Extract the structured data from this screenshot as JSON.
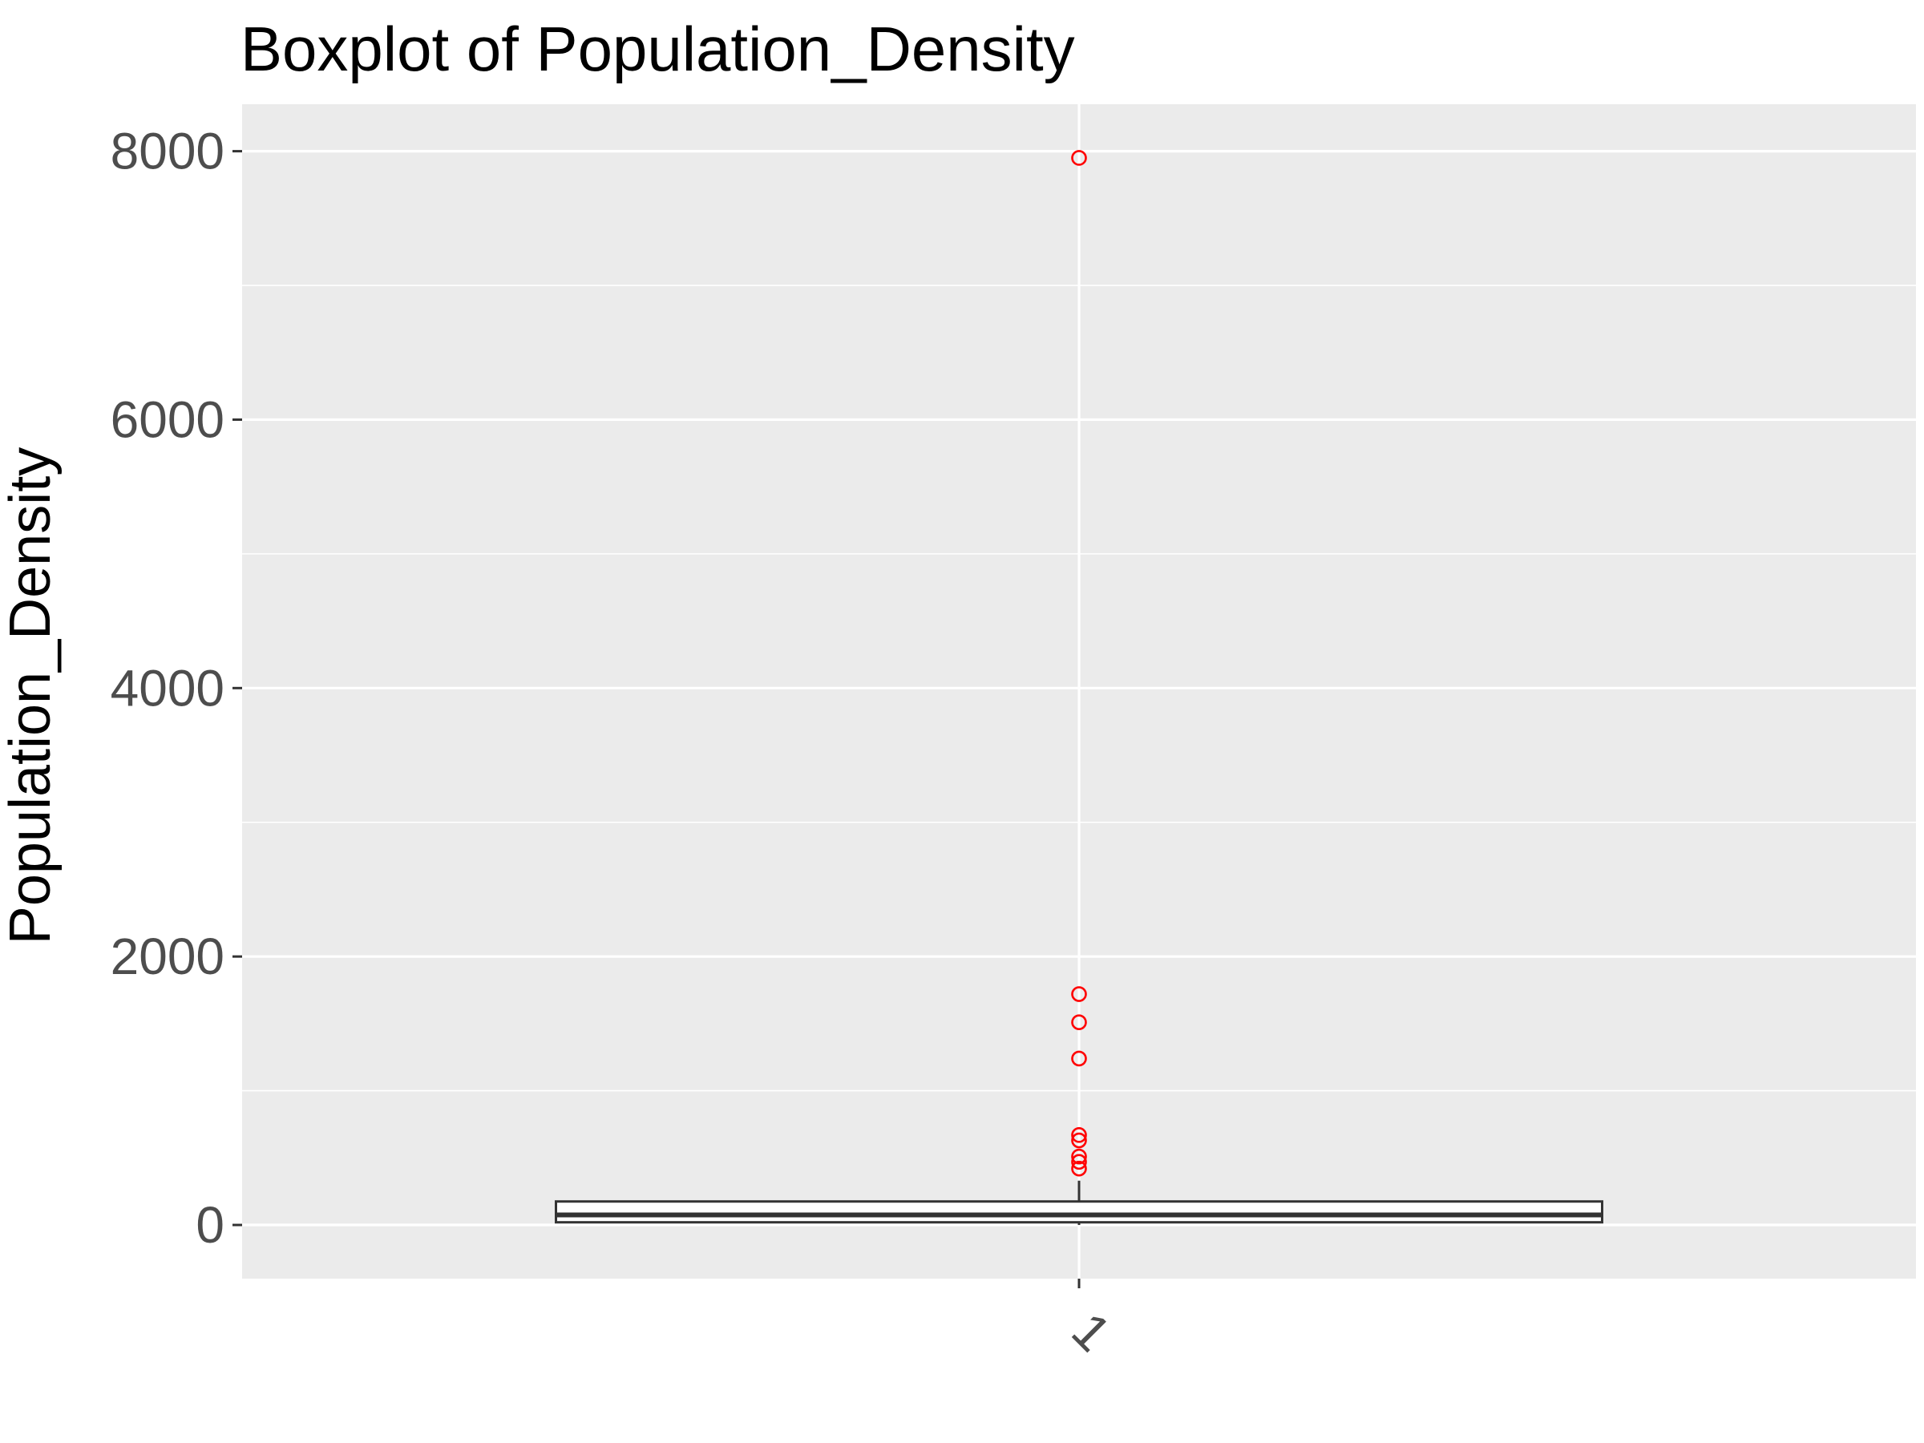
{
  "chart_data": {
    "type": "box",
    "title": "Boxplot of Population_Density",
    "xlabel": "",
    "ylabel": "Population_Density",
    "categories": [
      "1"
    ],
    "ylim": [
      -400,
      8350
    ],
    "yticks": [
      0,
      2000,
      4000,
      6000,
      8000
    ],
    "grid": true,
    "box": {
      "min": 0,
      "q1": 20,
      "median": 75,
      "q3": 175,
      "whisker_high": 330
    },
    "outliers": [
      7950,
      1720,
      1510,
      1240,
      670,
      630,
      510,
      470,
      420
    ],
    "colors": {
      "panel": "#ebebeb",
      "grid": "#ffffff",
      "box": "#333333",
      "outlier": "#ff0000"
    }
  }
}
